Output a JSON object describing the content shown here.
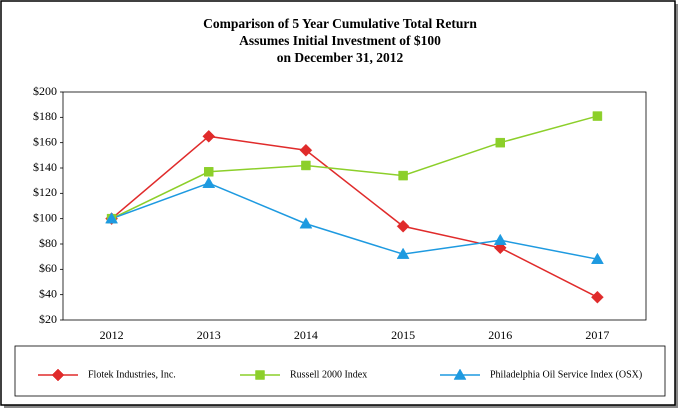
{
  "chart_data": {
    "type": "line",
    "title": "Comparison of 5 Year Cumulative Total Return",
    "subtitle": [
      "Assumes Initial Investment of $100",
      "on December 31, 2012"
    ],
    "categories": [
      "2012",
      "2013",
      "2014",
      "2015",
      "2016",
      "2017"
    ],
    "series": [
      {
        "name": "Flotek Industries, Inc.",
        "color": "#e02b2b",
        "marker": "diamond",
        "values": [
          100,
          165,
          154,
          94,
          77,
          38
        ]
      },
      {
        "name": "Russell 2000 Index",
        "color": "#8ccf2a",
        "marker": "square",
        "values": [
          100,
          137,
          142,
          134,
          160,
          181
        ]
      },
      {
        "name": "Philadelphia Oil Service Index (OSX)",
        "color": "#1e9ae0",
        "marker": "triangle",
        "values": [
          100,
          128,
          96,
          72,
          83,
          68
        ]
      }
    ],
    "ylim": [
      20,
      200
    ],
    "yticks": [
      {
        "value": 20,
        "label": "$20"
      },
      {
        "value": 40,
        "label": "$40"
      },
      {
        "value": 60,
        "label": "$60"
      },
      {
        "value": 80,
        "label": "$80"
      },
      {
        "value": 100,
        "label": "$100"
      },
      {
        "value": 120,
        "label": "$120"
      },
      {
        "value": 140,
        "label": "$140"
      },
      {
        "value": 160,
        "label": "$160"
      },
      {
        "value": 180,
        "label": "$180"
      },
      {
        "value": 200,
        "label": "$200"
      }
    ],
    "grid": false,
    "legend": "bottom"
  }
}
